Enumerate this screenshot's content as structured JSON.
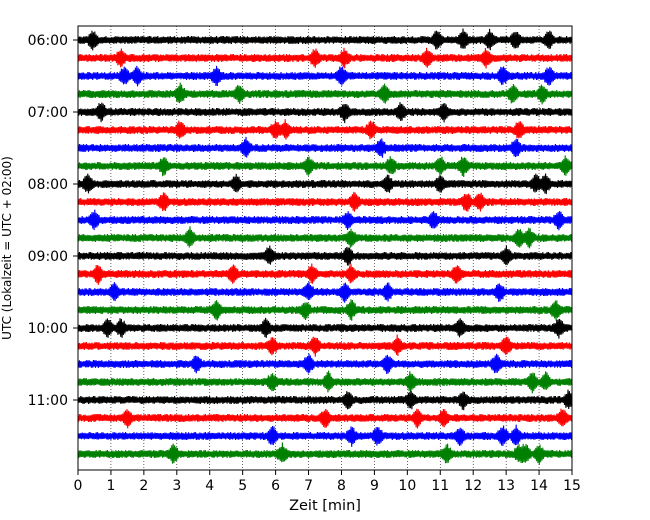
{
  "chart_data": {
    "type": "line",
    "title": "",
    "xlabel": "Zeit  [min]",
    "ylabel": "UTC (Lokalzeit = UTC + 02:00)",
    "xlim": [
      0,
      15
    ],
    "x_ticks": [
      "0",
      "1",
      "2",
      "3",
      "4",
      "5",
      "6",
      "7",
      "8",
      "9",
      "10",
      "11",
      "12",
      "13",
      "14",
      "15"
    ],
    "y_tick_labels": [
      "06:00",
      "07:00",
      "08:00",
      "09:00",
      "10:00",
      "11:00"
    ],
    "grid": "vertical-dotted",
    "colors": [
      "#000000",
      "#ff0000",
      "#0000ff",
      "#008000"
    ],
    "trace_start_times": [
      "06:00",
      "06:15",
      "06:30",
      "06:45",
      "07:00",
      "07:15",
      "07:30",
      "07:45",
      "08:00",
      "08:15",
      "08:30",
      "08:45",
      "09:00",
      "09:15",
      "09:30",
      "09:45",
      "10:00",
      "10:15",
      "10:30",
      "10:45",
      "11:00",
      "11:15",
      "11:30",
      "11:45"
    ],
    "trace_minutes_per_line": 15,
    "spikes": [
      [
        0.45,
        10.9,
        11.7,
        12.5,
        13.3,
        14.3
      ],
      [
        1.3,
        7.2,
        8.1,
        10.6,
        12.4
      ],
      [
        1.4,
        1.8,
        4.2,
        8.0,
        12.9,
        14.3
      ],
      [
        3.1,
        4.9,
        9.3,
        13.2,
        14.1
      ],
      [
        0.7,
        8.1,
        9.8,
        11.1
      ],
      [
        3.1,
        6.0,
        6.3,
        8.9,
        13.4
      ],
      [
        5.1,
        9.2,
        13.3
      ],
      [
        2.6,
        7.0,
        9.5,
        11.0,
        11.7,
        14.8
      ],
      [
        0.3,
        4.8,
        9.4,
        11.0,
        13.9,
        14.2
      ],
      [
        2.6,
        8.4,
        11.8,
        12.2
      ],
      [
        0.5,
        8.2,
        10.8,
        14.6
      ],
      [
        3.4,
        8.3,
        13.4,
        13.7
      ],
      [
        5.8,
        8.2,
        13.0
      ],
      [
        0.6,
        4.7,
        7.1,
        8.3,
        11.5
      ],
      [
        1.1,
        7.0,
        8.1,
        9.4,
        12.8
      ],
      [
        4.2,
        6.9,
        8.3,
        14.5
      ],
      [
        0.9,
        1.3,
        5.7,
        11.6,
        14.6
      ],
      [
        5.9,
        7.2,
        9.7,
        13.0
      ],
      [
        3.6,
        7.0,
        9.4,
        12.7
      ],
      [
        5.9,
        7.6,
        10.1,
        13.8,
        14.2
      ],
      [
        8.2,
        10.1,
        11.7,
        14.9
      ],
      [
        1.5,
        7.5,
        10.3,
        11.1,
        14.7
      ],
      [
        5.9,
        8.3,
        9.1,
        11.6,
        12.9,
        13.3
      ],
      [
        2.9,
        6.2,
        11.2,
        13.4,
        13.6,
        14.0
      ]
    ]
  }
}
